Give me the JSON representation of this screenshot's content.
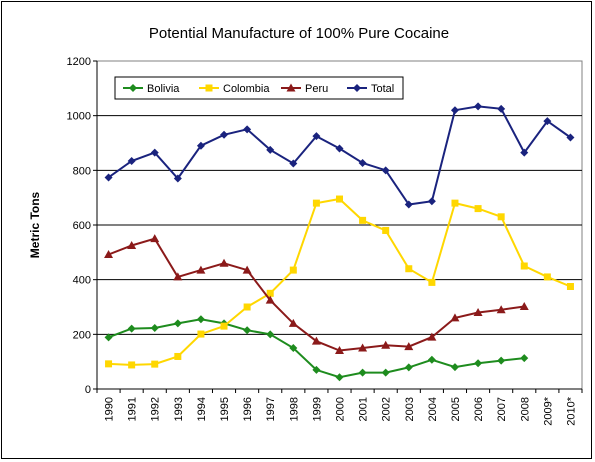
{
  "chart_data": {
    "type": "line",
    "title": "Potential Manufacture of 100% Pure Cocaine",
    "xlabel": "",
    "ylabel": "Metric Tons",
    "ylim": [
      0,
      1200
    ],
    "yticks": [
      "0",
      "200",
      "400",
      "600",
      "800",
      "1000",
      "1200"
    ],
    "grid": true,
    "legend_position": "top-left",
    "categories": [
      "1990",
      "1991",
      "1992",
      "1993",
      "1994",
      "1995",
      "1996",
      "1997",
      "1998",
      "1999",
      "2000",
      "2001",
      "2002",
      "2003",
      "2004",
      "2005",
      "2006",
      "2007",
      "2008",
      "2009*",
      "2010*"
    ],
    "series": [
      {
        "name": "Bolivia",
        "color": "#1e8c1e",
        "marker": "diamond",
        "values": [
          189,
          221,
          223,
          240,
          255,
          240,
          215,
          200,
          150,
          70,
          43,
          60,
          60,
          79,
          107,
          80,
          94,
          104,
          113,
          null,
          null
        ]
      },
      {
        "name": "Colombia",
        "color": "#ffd700",
        "marker": "square",
        "values": [
          92,
          88,
          91,
          119,
          201,
          230,
          300,
          350,
          435,
          680,
          695,
          617,
          580,
          440,
          390,
          680,
          660,
          630,
          450,
          410,
          375
        ]
      },
      {
        "name": "Peru",
        "color": "#8b1a1a",
        "marker": "triangle",
        "values": [
          492,
          525,
          550,
          410,
          435,
          460,
          435,
          325,
          240,
          175,
          141,
          150,
          160,
          155,
          190,
          260,
          280,
          290,
          302,
          null,
          null
        ]
      },
      {
        "name": "Total",
        "color": "#1a237e",
        "marker": "diamond",
        "values": [
          774,
          834,
          865,
          770,
          890,
          930,
          950,
          875,
          825,
          925,
          880,
          827,
          800,
          675,
          687,
          1020,
          1034,
          1025,
          865,
          980,
          920
        ]
      }
    ]
  }
}
